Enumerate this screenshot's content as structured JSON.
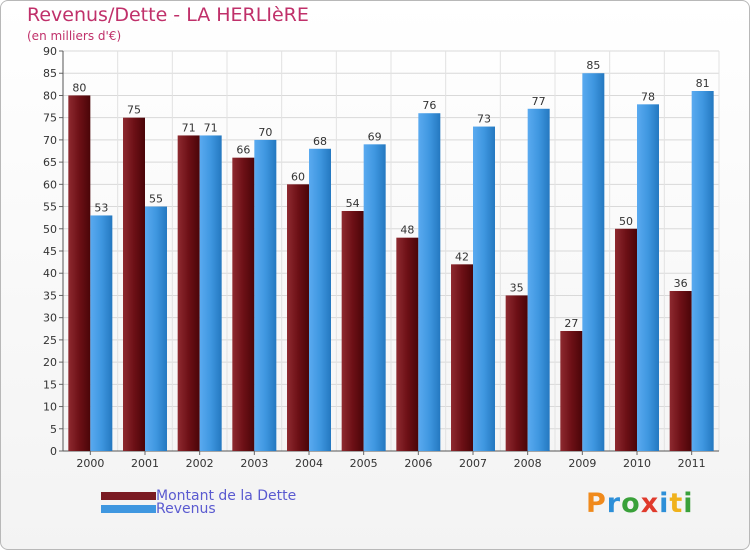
{
  "chart_title": "Revenus/Dette - LA HERLIèRE",
  "chart_subtitle": "(en milliers d'€)",
  "legend": [
    {
      "label": "Montant de la Dette",
      "color": "#7a1a22"
    },
    {
      "label": "Revenus",
      "color": "#3f97e0"
    }
  ],
  "logo": {
    "letters": [
      "P",
      "r",
      "o",
      "x",
      "i",
      "t",
      "i"
    ],
    "colors": [
      "#f08a1c",
      "#2d8fd8",
      "#3aa13a",
      "#e03a2c",
      "#2d8fd8",
      "#f0b21c",
      "#3aa13a"
    ]
  },
  "chart_data": {
    "type": "bar",
    "title": "Revenus/Dette - LA HERLIèRE",
    "subtitle": "(en milliers d'€)",
    "categories": [
      "2000",
      "2001",
      "2002",
      "2003",
      "2004",
      "2005",
      "2006",
      "2007",
      "2008",
      "2009",
      "2010",
      "2011"
    ],
    "series": [
      {
        "name": "Montant de la Dette",
        "values": [
          80,
          75,
          71,
          66,
          60,
          54,
          48,
          42,
          35,
          27,
          50,
          36
        ],
        "color": "#7a1a22"
      },
      {
        "name": "Revenus",
        "values": [
          53,
          55,
          71,
          70,
          68,
          69,
          76,
          73,
          77,
          85,
          78,
          81
        ],
        "color": "#3f97e0"
      }
    ],
    "ylim": [
      0,
      90
    ],
    "yticks": [
      0,
      5,
      10,
      15,
      20,
      25,
      30,
      35,
      40,
      45,
      50,
      55,
      60,
      65,
      70,
      75,
      80,
      85,
      90
    ],
    "grid": true,
    "legend_position": "bottom-left",
    "xlabel": "",
    "ylabel": ""
  }
}
